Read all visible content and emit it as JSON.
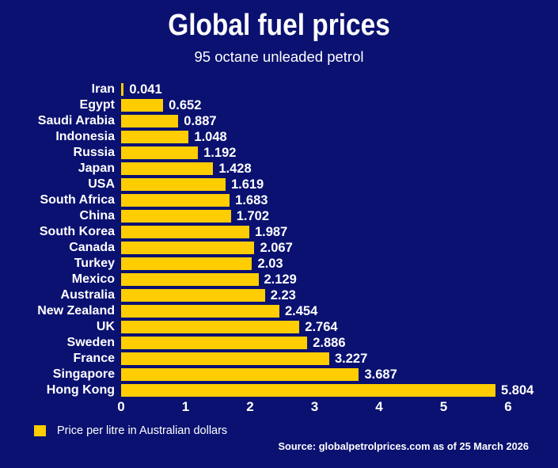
{
  "title": "Global fuel prices",
  "subtitle": "95 octane unleaded petrol",
  "legend": {
    "label": "Price per litre in Australian dollars",
    "swatch_color": "#ffcd00"
  },
  "source": "Source: globalpetrolprices.com as of 25 March 2026",
  "colors": {
    "background": "#0a1170",
    "bar": "#ffcd00",
    "text": "#ffffff"
  },
  "chart_data": {
    "type": "bar",
    "orientation": "horizontal",
    "categories": [
      "Iran",
      "Egypt",
      "Saudi Arabia",
      "Indonesia",
      "Russia",
      "Japan",
      "USA",
      "South Africa",
      "China",
      "South Korea",
      "Canada",
      "Turkey",
      "Mexico",
      "Australia",
      "New Zealand",
      "UK",
      "Sweden",
      "France",
      "Singapore",
      "Hong Kong"
    ],
    "values": [
      0.041,
      0.652,
      0.887,
      1.048,
      1.192,
      1.428,
      1.619,
      1.683,
      1.702,
      1.987,
      2.067,
      2.03,
      2.129,
      2.23,
      2.454,
      2.764,
      2.886,
      3.227,
      3.687,
      5.804
    ],
    "xlabel": "",
    "ylabel": "",
    "xticks": [
      0,
      1,
      2,
      3,
      4,
      5,
      6
    ],
    "xlim": [
      0,
      6
    ],
    "grid": false,
    "legend_position": "bottom-left"
  }
}
